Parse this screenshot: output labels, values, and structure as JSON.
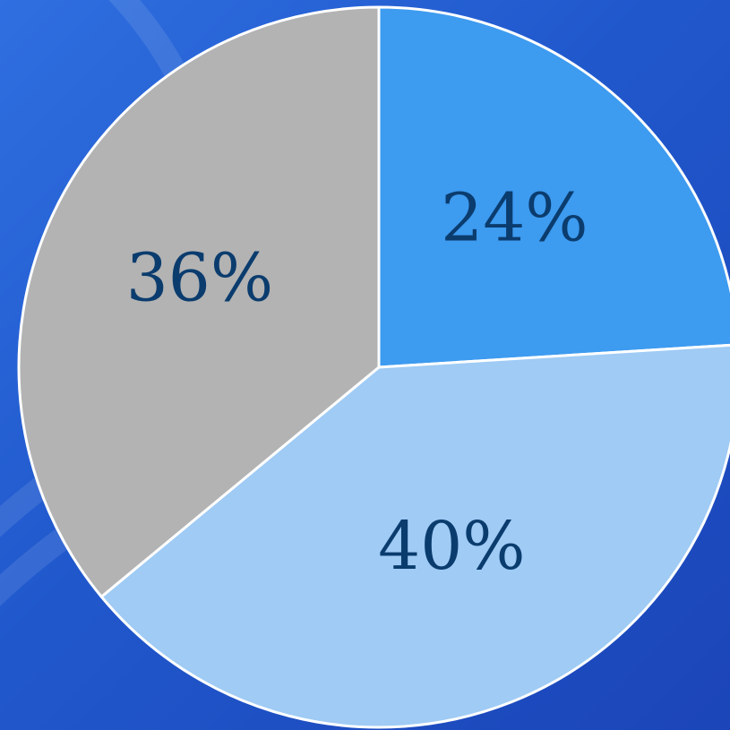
{
  "chart_data": {
    "type": "pie",
    "slices": [
      {
        "label": "24%",
        "value": 24,
        "color": "#3d9bf0"
      },
      {
        "label": "40%",
        "value": 40,
        "color": "#9fcbf5"
      },
      {
        "label": "36%",
        "value": 36,
        "color": "#b3b3b3"
      }
    ],
    "title": "",
    "legend": "none",
    "start_angle_deg": 0,
    "direction": "clockwise"
  }
}
